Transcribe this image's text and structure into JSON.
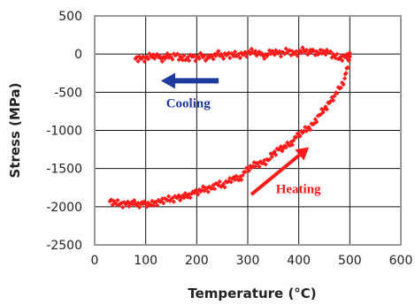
{
  "chart_data": {
    "type": "scatter",
    "title": "",
    "xlabel": "Temperature (°C)",
    "ylabel": "Stress (MPa)",
    "xlim": [
      0,
      600
    ],
    "ylim": [
      -2500,
      500
    ],
    "x_ticks": [
      "0",
      "100",
      "200",
      "300",
      "400",
      "500",
      "600"
    ],
    "y_ticks": [
      "500",
      "0",
      "-500",
      "-1000",
      "-1500",
      "-2000",
      "-2500"
    ],
    "grid": true,
    "legend": "none",
    "colors": {
      "series": "#ff1a1a",
      "cooling": "#1f3a9e",
      "heating": "#ff1a1a",
      "grid": "#111111",
      "frame": "#9a9a9a"
    },
    "series": [
      {
        "values_description_free": true,
        "x": [
          30,
          40,
          50,
          60,
          70,
          80,
          90,
          100,
          110,
          120,
          130,
          140,
          150,
          160,
          170,
          180,
          190,
          200,
          210,
          220,
          230,
          240,
          250,
          260,
          270,
          280,
          290,
          300,
          310,
          320,
          330,
          340,
          350,
          360,
          370,
          380,
          390,
          400,
          410,
          420,
          430,
          440,
          450,
          460,
          470,
          480,
          490,
          495,
          500,
          498,
          490,
          480,
          470,
          460,
          450,
          440,
          430,
          420,
          410,
          400,
          390,
          380,
          370,
          360,
          350,
          340,
          330,
          320,
          310,
          300,
          290,
          280,
          270,
          260,
          250,
          240,
          230,
          220,
          210,
          200,
          190,
          180,
          170,
          160,
          150,
          140,
          130,
          120,
          110,
          100,
          90,
          80
        ],
        "y": [
          -1930,
          -1950,
          -1960,
          -1965,
          -1960,
          -1955,
          -1965,
          -1960,
          -1975,
          -1940,
          -1930,
          -1905,
          -1900,
          -1880,
          -1880,
          -1860,
          -1830,
          -1810,
          -1780,
          -1760,
          -1760,
          -1700,
          -1720,
          -1680,
          -1630,
          -1640,
          -1590,
          -1500,
          -1470,
          -1430,
          -1430,
          -1390,
          -1300,
          -1250,
          -1230,
          -1190,
          -1130,
          -1050,
          -1010,
          -960,
          -910,
          -800,
          -720,
          -640,
          -550,
          -450,
          -320,
          -180,
          -30,
          -10,
          -40,
          -60,
          -20,
          20,
          30,
          10,
          40,
          20,
          50,
          30,
          0,
          40,
          20,
          10,
          30,
          0,
          -20,
          10,
          30,
          20,
          -10,
          -20,
          0,
          -10,
          -30,
          10,
          -30,
          -60,
          -20,
          -50,
          -30,
          -70,
          -50,
          -10,
          -40,
          -30,
          -60,
          -20,
          -30,
          -50,
          -60,
          -60
        ]
      }
    ],
    "annotations": [
      {
        "text": "Cooling",
        "direction": "left"
      },
      {
        "text": "Heating",
        "direction": "up-right"
      }
    ]
  }
}
